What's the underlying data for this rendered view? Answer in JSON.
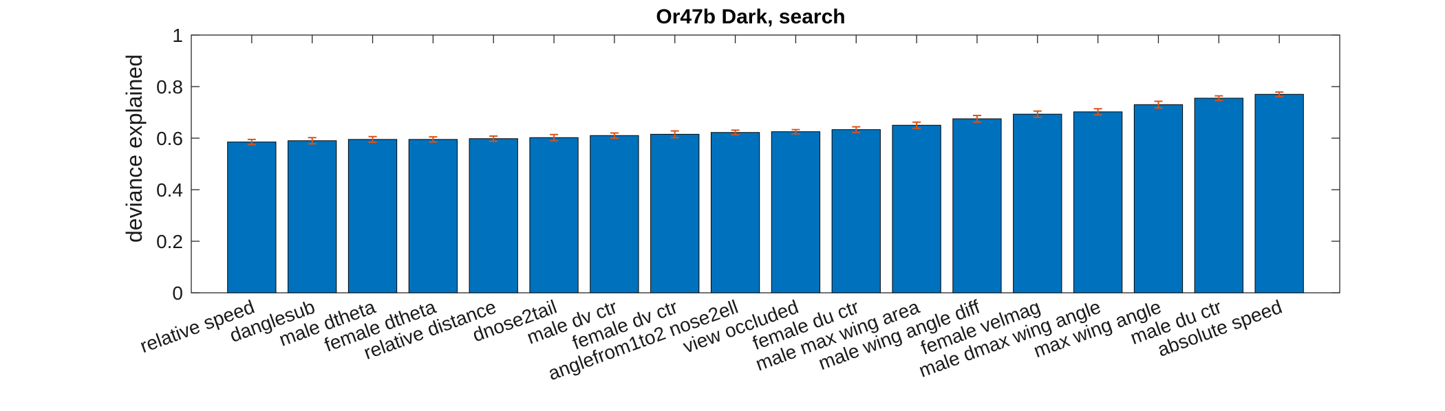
{
  "chart_data": {
    "type": "bar",
    "title": "Or47b Dark, search",
    "xlabel": "",
    "ylabel": "deviance explained",
    "ylim": [
      0,
      1
    ],
    "yticks": [
      "0",
      "0.2",
      "0.4",
      "0.6",
      "0.8",
      "1"
    ],
    "yticks_values": [
      0,
      0.2,
      0.4,
      0.6,
      0.8,
      1
    ],
    "grid": false,
    "bar_color": "#0072BD",
    "error_color": "#D95319",
    "categories": [
      "relative speed",
      "danglesub",
      "male dtheta",
      "female dtheta",
      "relative distance",
      "dnose2tail",
      "male dv ctr",
      "female dv ctr",
      "anglefrom1to2 nose2ell",
      "view occluded",
      "female du ctr",
      "male max wing area",
      "male wing angle diff",
      "female velmag",
      "male dmax wing angle",
      "max wing angle",
      "male du ctr",
      "absolute speed"
    ],
    "values": [
      0.585,
      0.59,
      0.595,
      0.595,
      0.598,
      0.602,
      0.61,
      0.615,
      0.622,
      0.625,
      0.633,
      0.65,
      0.675,
      0.693,
      0.702,
      0.73,
      0.755,
      0.77
    ],
    "errors": [
      0.01,
      0.012,
      0.011,
      0.01,
      0.01,
      0.012,
      0.01,
      0.013,
      0.009,
      0.008,
      0.011,
      0.012,
      0.013,
      0.012,
      0.012,
      0.013,
      0.009,
      0.009
    ]
  }
}
